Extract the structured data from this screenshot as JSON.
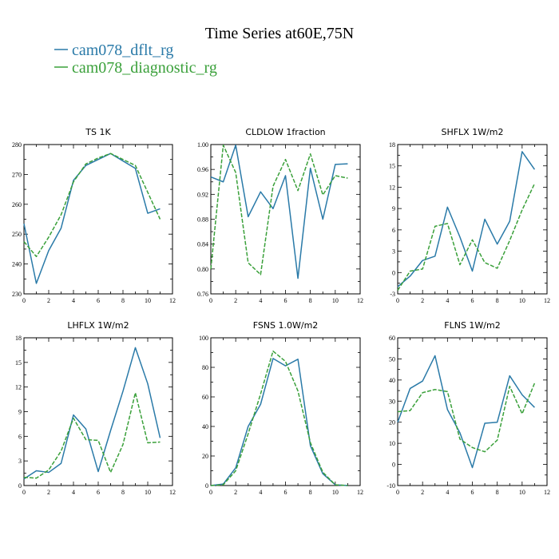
{
  "figure": {
    "title": "Time Series at60E,75N"
  },
  "legend": [
    {
      "name": "cam078_dflt_rg",
      "color": "#2a7aa8",
      "dash": "solid"
    },
    {
      "name": "cam078_diagnostic_rg",
      "color": "#3aa03a",
      "dash": "dashed"
    }
  ],
  "chart_data": [
    {
      "type": "line",
      "title": "TS   1K",
      "xlim": [
        0,
        12
      ],
      "ylim": [
        230,
        280
      ],
      "xticks": [
        0,
        2,
        4,
        6,
        8,
        10,
        12
      ],
      "yticks": [
        230,
        240,
        250,
        260,
        270,
        280
      ],
      "x": [
        0,
        1,
        2,
        3,
        4,
        5,
        6,
        7,
        8,
        9,
        10,
        11
      ],
      "series": [
        {
          "name": "cam078_dflt_rg",
          "values": [
            253.5,
            233.5,
            244.5,
            252.0,
            268.0,
            273.0,
            275.0,
            277.0,
            274.5,
            272.0,
            257.0,
            258.5
          ]
        },
        {
          "name": "cam078_diagnostic_rg",
          "values": [
            247.5,
            242.5,
            249.0,
            256.5,
            267.5,
            273.5,
            275.5,
            277.0,
            275.0,
            273.0,
            264.0,
            255.0
          ]
        }
      ]
    },
    {
      "type": "line",
      "title": "CLDLOW   1fraction",
      "xlim": [
        0,
        12
      ],
      "ylim": [
        0.76,
        1.0
      ],
      "xticks": [
        0,
        2,
        4,
        6,
        8,
        10,
        12
      ],
      "yticks": [
        0.76,
        0.8,
        0.84,
        0.88,
        0.92,
        0.96,
        1.0
      ],
      "ytick_labels": [
        "0.76",
        "0.80",
        "0.84",
        "0.88",
        "0.92",
        "0.96",
        "1.00"
      ],
      "x": [
        0,
        1,
        2,
        3,
        4,
        5,
        6,
        7,
        8,
        9,
        10,
        11
      ],
      "series": [
        {
          "name": "cam078_dflt_rg",
          "values": [
            0.948,
            0.94,
            0.999,
            0.884,
            0.924,
            0.897,
            0.95,
            0.785,
            0.962,
            0.88,
            0.968,
            0.969
          ]
        },
        {
          "name": "cam078_diagnostic_rg",
          "values": [
            0.8,
            0.999,
            0.955,
            0.81,
            0.791,
            0.933,
            0.976,
            0.926,
            0.985,
            0.919,
            0.95,
            0.946
          ]
        }
      ]
    },
    {
      "type": "line",
      "title": "SHFLX   1W/m2",
      "xlim": [
        0,
        12
      ],
      "ylim": [
        -3,
        18
      ],
      "xticks": [
        0,
        2,
        4,
        6,
        8,
        10,
        12
      ],
      "yticks": [
        -3,
        0,
        3,
        6,
        9,
        12,
        15,
        18
      ],
      "x": [
        0,
        1,
        2,
        3,
        4,
        5,
        6,
        7,
        8,
        9,
        10,
        11
      ],
      "series": [
        {
          "name": "cam078_dflt_rg",
          "values": [
            -2.0,
            -0.5,
            1.7,
            2.3,
            9.2,
            5.0,
            0.2,
            7.5,
            4.0,
            7.2,
            17.0,
            14.5
          ]
        },
        {
          "name": "cam078_diagnostic_rg",
          "values": [
            -2.5,
            0.2,
            0.5,
            6.5,
            6.9,
            1.1,
            4.6,
            1.4,
            0.6,
            4.5,
            8.8,
            12.5
          ]
        }
      ]
    },
    {
      "type": "line",
      "title": "LHFLX   1W/m2",
      "xlim": [
        0,
        12
      ],
      "ylim": [
        0,
        18
      ],
      "xticks": [
        0,
        2,
        4,
        6,
        8,
        10,
        12
      ],
      "yticks": [
        0,
        3,
        6,
        9,
        12,
        15,
        18
      ],
      "x": [
        0,
        1,
        2,
        3,
        4,
        5,
        6,
        7,
        8,
        9,
        10,
        11
      ],
      "series": [
        {
          "name": "cam078_dflt_rg",
          "values": [
            0.8,
            1.8,
            1.6,
            2.7,
            8.6,
            6.9,
            1.7,
            6.7,
            11.5,
            16.8,
            12.4,
            5.8
          ]
        },
        {
          "name": "cam078_diagnostic_rg",
          "values": [
            1.0,
            0.9,
            1.9,
            4.2,
            8.2,
            5.6,
            5.5,
            1.6,
            5.0,
            11.3,
            5.2,
            5.3
          ]
        }
      ]
    },
    {
      "type": "line",
      "title": "FSNS   1.0W/m2",
      "xlim": [
        0,
        12
      ],
      "ylim": [
        0,
        100
      ],
      "xticks": [
        0,
        2,
        4,
        6,
        8,
        10,
        12
      ],
      "yticks": [
        0,
        20,
        40,
        60,
        80,
        100
      ],
      "x": [
        0,
        1,
        2,
        3,
        4,
        5,
        6,
        7,
        8,
        9,
        10,
        11
      ],
      "series": [
        {
          "name": "cam078_dflt_rg",
          "values": [
            0.0,
            1.0,
            12.0,
            40.0,
            55.0,
            86.0,
            81.0,
            85.5,
            27.0,
            8.0,
            0.5,
            0.0
          ]
        },
        {
          "name": "cam078_diagnostic_rg",
          "values": [
            0.0,
            0.5,
            10.0,
            35.0,
            62.0,
            91.0,
            84.0,
            64.0,
            29.0,
            9.0,
            0.5,
            0.0
          ]
        }
      ]
    },
    {
      "type": "line",
      "title": "FLNS   1W/m2",
      "xlim": [
        0,
        12
      ],
      "ylim": [
        -10,
        60
      ],
      "xticks": [
        0,
        2,
        4,
        6,
        8,
        10,
        12
      ],
      "yticks": [
        -10,
        0,
        10,
        20,
        30,
        40,
        50,
        60
      ],
      "x": [
        0,
        1,
        2,
        3,
        4,
        5,
        6,
        7,
        8,
        9,
        10,
        11
      ],
      "series": [
        {
          "name": "cam078_dflt_rg",
          "values": [
            20.0,
            36.0,
            39.5,
            51.5,
            26.0,
            15.0,
            -1.5,
            19.5,
            20.0,
            42.0,
            33.0,
            27.0
          ]
        },
        {
          "name": "cam078_diagnostic_rg",
          "values": [
            25.0,
            25.5,
            34.0,
            35.5,
            34.5,
            12.0,
            8.0,
            6.0,
            11.5,
            37.0,
            24.0,
            38.5
          ]
        }
      ]
    }
  ]
}
